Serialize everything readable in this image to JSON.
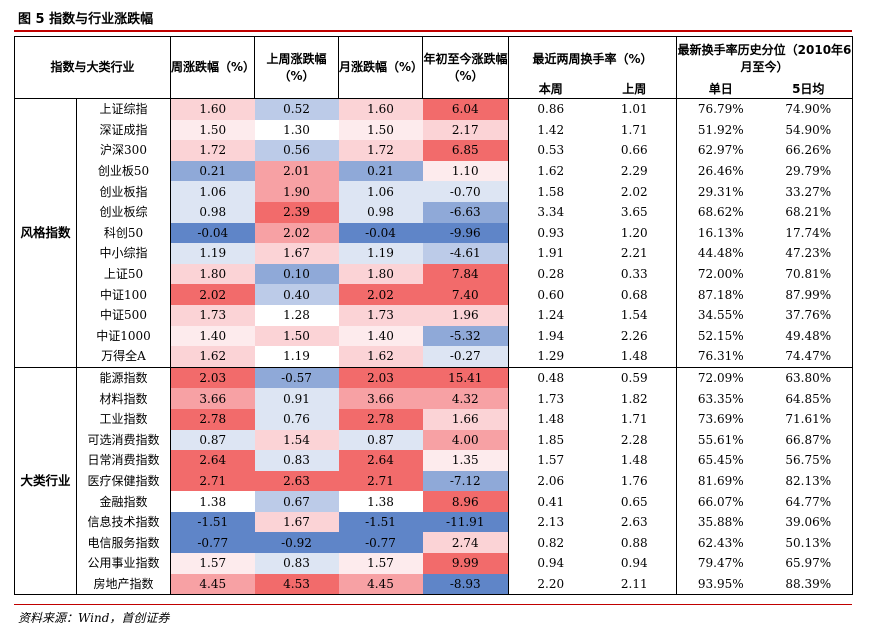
{
  "title": "图 5 指数与行业涨跌幅",
  "headers": {
    "index_industry": "指数与大类行业",
    "week_change": "周涨跌幅（%）",
    "last_week_change": "上周涨跌幅（%）",
    "month_change": "月涨跌幅（%）",
    "ytd_change": "年初至今涨跌幅（%）",
    "turnover_recent": "最近两周换手率（%）",
    "turnover_percentile": "最新换手率历史分位（2010年6月至今）",
    "this_week": "本周",
    "last_week": "上周",
    "single_day": "单日",
    "five_day_avg": "5日均"
  },
  "colors": {
    "red_strong": "#f26b6b",
    "red_mid": "#f7a1a4",
    "red_light": "#fbd3d6",
    "red_pale": "#fdebed",
    "blue_strong": "#5f85c8",
    "blue_mid": "#8fa9d8",
    "blue_light": "#bccbe8",
    "blue_pale": "#dde5f3",
    "accent_rule": "#c00000"
  },
  "groups": [
    {
      "label": "风格指数",
      "rows": [
        {
          "name": "上证综指",
          "week": "1.60",
          "last": "0.52",
          "month": "1.60",
          "ytd": "6.04",
          "tw": "0.86",
          "lw": "1.01",
          "day": "76.79%",
          "avg": "74.90%"
        },
        {
          "name": "深证成指",
          "week": "1.50",
          "last": "1.30",
          "month": "1.50",
          "ytd": "2.17",
          "tw": "1.42",
          "lw": "1.71",
          "day": "51.92%",
          "avg": "54.90%"
        },
        {
          "name": "沪深300",
          "week": "1.72",
          "last": "0.56",
          "month": "1.72",
          "ytd": "6.85",
          "tw": "0.53",
          "lw": "0.66",
          "day": "62.97%",
          "avg": "66.26%"
        },
        {
          "name": "创业板50",
          "week": "0.21",
          "last": "2.01",
          "month": "0.21",
          "ytd": "1.10",
          "tw": "1.62",
          "lw": "2.29",
          "day": "26.46%",
          "avg": "29.79%"
        },
        {
          "name": "创业板指",
          "week": "1.06",
          "last": "1.90",
          "month": "1.06",
          "ytd": "-0.70",
          "tw": "1.58",
          "lw": "2.02",
          "day": "29.31%",
          "avg": "33.27%"
        },
        {
          "name": "创业板综",
          "week": "0.98",
          "last": "2.39",
          "month": "0.98",
          "ytd": "-6.63",
          "tw": "3.34",
          "lw": "3.65",
          "day": "68.62%",
          "avg": "68.21%"
        },
        {
          "name": "科创50",
          "week": "-0.04",
          "last": "2.02",
          "month": "-0.04",
          "ytd": "-9.96",
          "tw": "0.93",
          "lw": "1.20",
          "day": "16.13%",
          "avg": "17.74%"
        },
        {
          "name": "中小综指",
          "week": "1.19",
          "last": "1.67",
          "month": "1.19",
          "ytd": "-4.61",
          "tw": "1.91",
          "lw": "2.21",
          "day": "44.48%",
          "avg": "47.23%"
        },
        {
          "name": "上证50",
          "week": "1.80",
          "last": "0.10",
          "month": "1.80",
          "ytd": "7.84",
          "tw": "0.28",
          "lw": "0.33",
          "day": "72.00%",
          "avg": "70.81%"
        },
        {
          "name": "中证100",
          "week": "2.02",
          "last": "0.40",
          "month": "2.02",
          "ytd": "7.40",
          "tw": "0.60",
          "lw": "0.68",
          "day": "87.18%",
          "avg": "87.99%"
        },
        {
          "name": "中证500",
          "week": "1.73",
          "last": "1.28",
          "month": "1.73",
          "ytd": "1.96",
          "tw": "1.24",
          "lw": "1.54",
          "day": "34.55%",
          "avg": "37.76%"
        },
        {
          "name": "中证1000",
          "week": "1.40",
          "last": "1.50",
          "month": "1.40",
          "ytd": "-5.32",
          "tw": "1.94",
          "lw": "2.26",
          "day": "52.15%",
          "avg": "49.48%"
        },
        {
          "name": "万得全A",
          "week": "1.62",
          "last": "1.19",
          "month": "1.62",
          "ytd": "-0.27",
          "tw": "1.29",
          "lw": "1.48",
          "day": "76.31%",
          "avg": "74.47%"
        }
      ]
    },
    {
      "label": "大类行业",
      "rows": [
        {
          "name": "能源指数",
          "week": "2.03",
          "last": "-0.57",
          "month": "2.03",
          "ytd": "15.41",
          "tw": "0.48",
          "lw": "0.59",
          "day": "72.09%",
          "avg": "63.80%"
        },
        {
          "name": "材料指数",
          "week": "3.66",
          "last": "0.91",
          "month": "3.66",
          "ytd": "4.32",
          "tw": "1.73",
          "lw": "1.82",
          "day": "63.35%",
          "avg": "64.85%"
        },
        {
          "name": "工业指数",
          "week": "2.78",
          "last": "0.76",
          "month": "2.78",
          "ytd": "1.66",
          "tw": "1.48",
          "lw": "1.71",
          "day": "73.69%",
          "avg": "71.61%"
        },
        {
          "name": "可选消费指数",
          "week": "0.87",
          "last": "1.54",
          "month": "0.87",
          "ytd": "4.00",
          "tw": "1.85",
          "lw": "2.28",
          "day": "55.61%",
          "avg": "66.87%"
        },
        {
          "name": "日常消费指数",
          "week": "2.64",
          "last": "0.83",
          "month": "2.64",
          "ytd": "1.35",
          "tw": "1.57",
          "lw": "1.48",
          "day": "65.45%",
          "avg": "56.75%"
        },
        {
          "name": "医疗保健指数",
          "week": "2.71",
          "last": "2.63",
          "month": "2.71",
          "ytd": "-7.12",
          "tw": "2.06",
          "lw": "1.76",
          "day": "81.69%",
          "avg": "82.13%"
        },
        {
          "name": "金融指数",
          "week": "1.38",
          "last": "0.67",
          "month": "1.38",
          "ytd": "8.96",
          "tw": "0.41",
          "lw": "0.65",
          "day": "66.07%",
          "avg": "64.77%"
        },
        {
          "name": "信息技术指数",
          "week": "-1.51",
          "last": "1.67",
          "month": "-1.51",
          "ytd": "-11.91",
          "tw": "2.13",
          "lw": "2.63",
          "day": "35.88%",
          "avg": "39.06%"
        },
        {
          "name": "电信服务指数",
          "week": "-0.77",
          "last": "-0.92",
          "month": "-0.77",
          "ytd": "2.74",
          "tw": "0.82",
          "lw": "0.88",
          "day": "62.43%",
          "avg": "50.13%"
        },
        {
          "name": "公用事业指数",
          "week": "1.57",
          "last": "0.83",
          "month": "1.57",
          "ytd": "9.99",
          "tw": "0.94",
          "lw": "0.94",
          "day": "79.47%",
          "avg": "65.97%"
        },
        {
          "name": "房地产指数",
          "week": "4.45",
          "last": "4.53",
          "month": "4.45",
          "ytd": "-8.93",
          "tw": "2.20",
          "lw": "2.11",
          "day": "93.95%",
          "avg": "88.39%"
        }
      ]
    }
  ],
  "source": "资料来源：Wind，首创证券"
}
